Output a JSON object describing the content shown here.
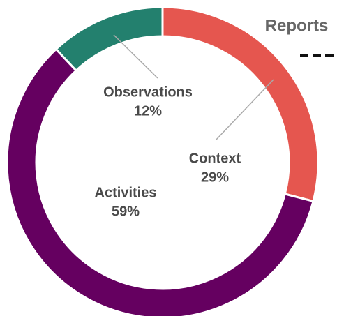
{
  "chart_data": {
    "type": "donut",
    "title": "Reports",
    "categories": [
      "Context",
      "Activities",
      "Observations"
    ],
    "values": [
      29,
      59,
      12
    ],
    "value_labels": [
      "29%",
      "59%",
      "12%"
    ],
    "colors": [
      "#e5564f",
      "#650060",
      "#23806e"
    ]
  }
}
